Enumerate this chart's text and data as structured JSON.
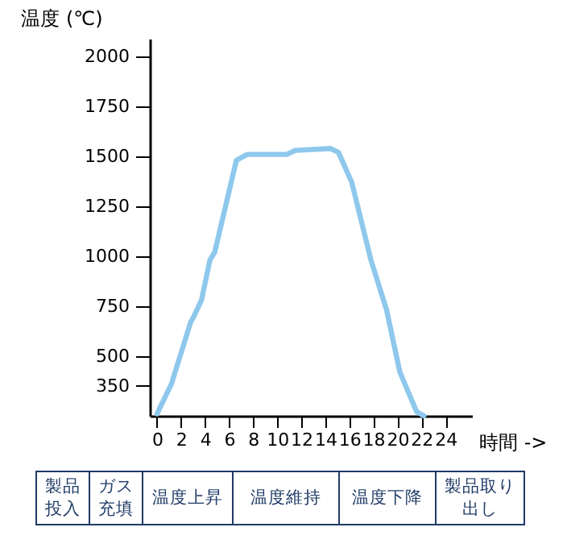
{
  "chart_data": {
    "type": "line",
    "xlabel": "時間 ->",
    "ylabel": "温度 (℃)",
    "x": [
      0,
      1.2,
      2.8,
      3.0,
      3.7,
      4.4,
      4.8,
      6.6,
      7.5,
      10.8,
      11.5,
      14.4,
      15.1,
      16.2,
      17.8,
      19.1,
      20.2,
      21.6,
      22.2
    ],
    "series": [
      {
        "color": "#8ec8ec",
        "values": [
          210,
          360,
          670,
          690,
          780,
          980,
          1020,
          1480,
          1510,
          1510,
          1530,
          1540,
          1520,
          1370,
          980,
          730,
          420,
          220,
          200
        ]
      }
    ],
    "xlim": [
      -0.6,
      26.2
    ],
    "xticks": [
      0,
      2,
      4,
      6,
      8,
      10,
      12,
      14,
      16,
      18,
      20,
      22,
      24
    ],
    "ylim": [
      200,
      2090
    ],
    "yticks": [
      350,
      500,
      750,
      1000,
      1250,
      1500,
      1750,
      2000
    ],
    "grid": false,
    "marker": "none",
    "line_style": "solid",
    "annotations": [
      "製品投入",
      "ガス充填",
      "温度上昇",
      "温度維持",
      "温度下降",
      "製品取り出し"
    ]
  }
}
